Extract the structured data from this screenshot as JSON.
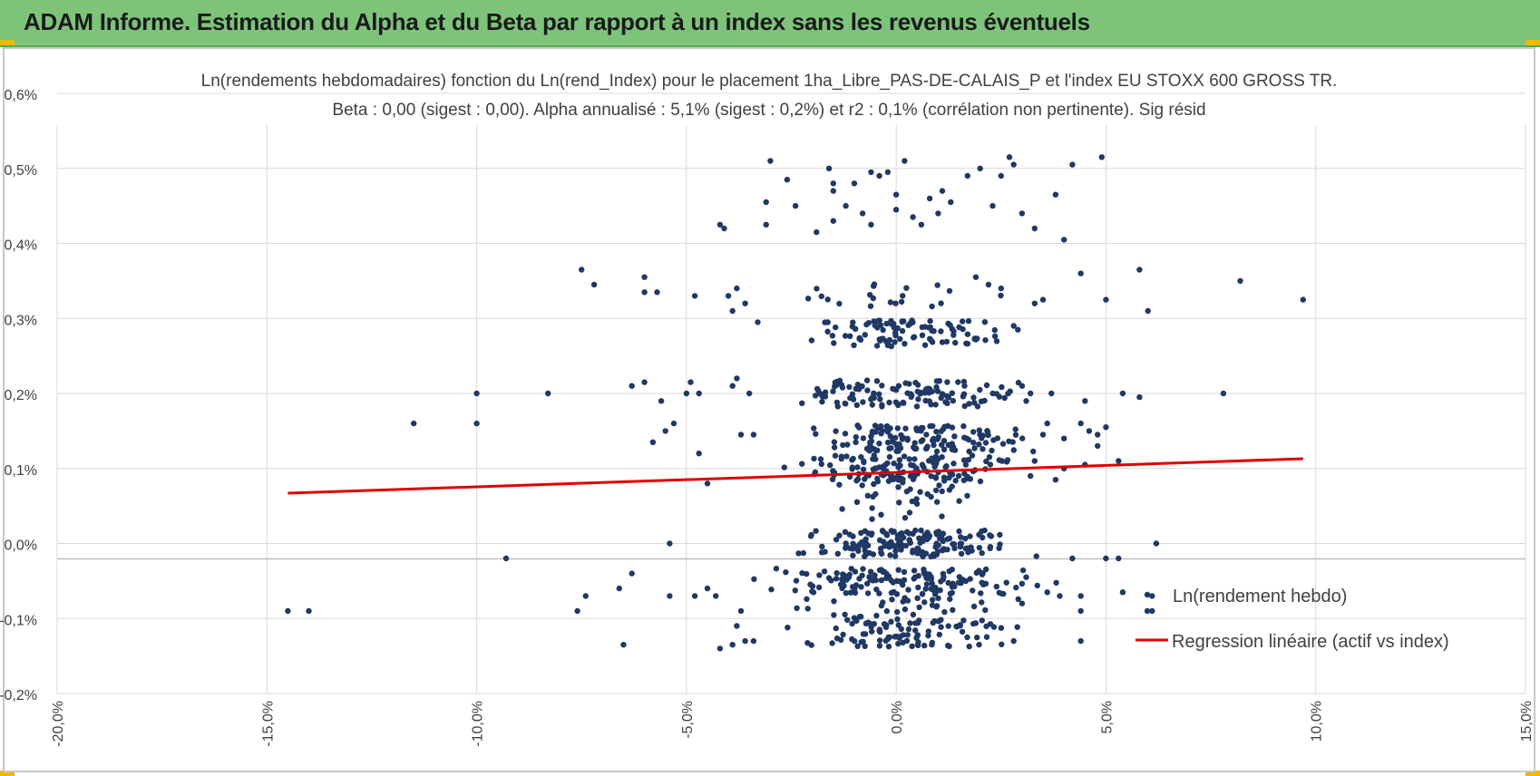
{
  "header": {
    "title": "ADAM Informe. Estimation du Alpha et du Beta par rapport à un index sans les revenus éventuels"
  },
  "colors": {
    "banner": "#7dc47a",
    "points": "#203864",
    "regression": "#e00000",
    "grid": "#d9d9d9"
  },
  "chart_data": {
    "type": "scatter",
    "title": "Ln(rendements hebdomadaires) fonction du Ln(rend_Index) pour le placement 1ha_Libre_PAS-DE-CALAIS_P et l'index EU STOXX 600 GROSS TR.",
    "subtitle": "Beta : 0,00 (sigest : 0,00). Alpha annualisé : 5,1% (sigest : 0,2%) et r2 : 0,1% (corrélation non pertinente). Sig résid",
    "xlabel": "",
    "ylabel": "",
    "xlim": [
      -20,
      15
    ],
    "ylim": [
      -0.2,
      0.6
    ],
    "x_ticks": [
      -20,
      -15,
      -10,
      -5,
      0,
      5,
      10,
      15
    ],
    "x_tick_labels": [
      "-20,0%",
      "-15,0%",
      "-10,0%",
      "-5,0%",
      "0,0%",
      "5,0%",
      "10,0%",
      "15,0%"
    ],
    "y_ticks": [
      -0.2,
      -0.1,
      0,
      0.1,
      0.2,
      0.3,
      0.4,
      0.5,
      0.6
    ],
    "y_tick_labels": [
      "-0,2%",
      "-0,1%",
      "0,0%",
      "0,1%",
      "0,2%",
      "0,3%",
      "0,4%",
      "0,5%",
      "0,6%"
    ],
    "grid": true,
    "legend": {
      "position": "bottom-right",
      "entries": [
        "Ln(rendement hebdo)",
        "Regression linéaire (actif vs index)"
      ]
    },
    "series": [
      {
        "name": "Ln(rendement hebdo)",
        "kind": "points",
        "points": [
          [
            -14.5,
            -0.09
          ],
          [
            -14.0,
            -0.09
          ],
          [
            -11.5,
            0.16
          ],
          [
            -10.0,
            0.2
          ],
          [
            -10.0,
            0.16
          ],
          [
            -9.3,
            -0.02
          ],
          [
            -8.3,
            0.2
          ],
          [
            -7.5,
            0.365
          ],
          [
            -7.2,
            0.345
          ],
          [
            -7.6,
            -0.09
          ],
          [
            -7.4,
            -0.07
          ],
          [
            -6.5,
            -0.135
          ],
          [
            -6.6,
            -0.06
          ],
          [
            -6.3,
            -0.04
          ],
          [
            -6.0,
            0.355
          ],
          [
            -6.0,
            0.335
          ],
          [
            -5.7,
            0.335
          ],
          [
            -6.3,
            0.21
          ],
          [
            -6.0,
            0.215
          ],
          [
            -5.6,
            0.19
          ],
          [
            -5.5,
            0.15
          ],
          [
            -5.8,
            0.135
          ],
          [
            -5.3,
            0.16
          ],
          [
            -5.4,
            0.0
          ],
          [
            -5.4,
            -0.07
          ],
          [
            -5.0,
            0.2
          ],
          [
            -4.9,
            0.215
          ],
          [
            -4.7,
            0.2
          ],
          [
            -4.7,
            0.12
          ],
          [
            -4.5,
            0.08
          ],
          [
            -4.8,
            0.33
          ],
          [
            -4.2,
            0.425
          ],
          [
            -4.1,
            0.42
          ],
          [
            -4.0,
            0.33
          ],
          [
            -3.8,
            0.34
          ],
          [
            -3.6,
            0.32
          ],
          [
            -3.9,
            0.31
          ],
          [
            -3.3,
            0.295
          ],
          [
            -3.9,
            0.21
          ],
          [
            -3.8,
            0.22
          ],
          [
            -3.5,
            0.2
          ],
          [
            -3.7,
            0.145
          ],
          [
            -3.4,
            0.145
          ],
          [
            -4.2,
            -0.14
          ],
          [
            -3.9,
            -0.135
          ],
          [
            -3.6,
            -0.13
          ],
          [
            -3.4,
            -0.13
          ],
          [
            -3.8,
            -0.11
          ],
          [
            -3.7,
            -0.09
          ],
          [
            -4.8,
            -0.07
          ],
          [
            -4.5,
            -0.06
          ],
          [
            -4.3,
            -0.07
          ],
          [
            -3.1,
            0.455
          ],
          [
            -3.1,
            0.425
          ],
          [
            -3.0,
            0.51
          ],
          [
            -2.6,
            0.485
          ],
          [
            -2.4,
            0.45
          ],
          [
            -1.9,
            0.415
          ],
          [
            -1.6,
            0.5
          ],
          [
            -1.5,
            0.48
          ],
          [
            -1.5,
            0.47
          ],
          [
            -1.5,
            0.43
          ],
          [
            -1.2,
            0.45
          ],
          [
            -1.0,
            0.48
          ],
          [
            -0.8,
            0.44
          ],
          [
            -0.6,
            0.425
          ],
          [
            -0.6,
            0.495
          ],
          [
            -0.4,
            0.49
          ],
          [
            -0.2,
            0.495
          ],
          [
            0.0,
            0.465
          ],
          [
            0.0,
            0.445
          ],
          [
            0.2,
            0.51
          ],
          [
            0.4,
            0.435
          ],
          [
            0.6,
            0.425
          ],
          [
            0.8,
            0.46
          ],
          [
            1.0,
            0.44
          ],
          [
            1.1,
            0.47
          ],
          [
            1.3,
            0.455
          ],
          [
            1.7,
            0.49
          ],
          [
            2.0,
            0.5
          ],
          [
            2.3,
            0.45
          ],
          [
            2.5,
            0.49
          ],
          [
            2.7,
            0.515
          ],
          [
            2.8,
            0.505
          ],
          [
            3.0,
            0.44
          ],
          [
            3.3,
            0.42
          ],
          [
            3.8,
            0.465
          ],
          [
            4.0,
            0.405
          ],
          [
            4.2,
            0.505
          ],
          [
            4.4,
            0.36
          ],
          [
            4.9,
            0.515
          ],
          [
            5.0,
            0.325
          ],
          [
            5.8,
            0.365
          ],
          [
            6.0,
            0.31
          ],
          [
            8.2,
            0.35
          ],
          [
            9.7,
            0.325
          ],
          [
            7.8,
            0.2
          ],
          [
            5.4,
            0.2
          ],
          [
            5.8,
            0.195
          ],
          [
            5.0,
            0.155
          ],
          [
            4.8,
            0.145
          ],
          [
            4.6,
            0.15
          ],
          [
            4.5,
            0.105
          ],
          [
            4.8,
            0.13
          ],
          [
            4.4,
            0.16
          ],
          [
            4.5,
            0.19
          ],
          [
            5.3,
            0.11
          ],
          [
            5.0,
            -0.02
          ],
          [
            5.3,
            -0.02
          ],
          [
            6.2,
            0.0
          ],
          [
            5.4,
            -0.065
          ],
          [
            6.1,
            -0.07
          ],
          [
            6.1,
            -0.09
          ],
          [
            4.4,
            -0.13
          ],
          [
            4.4,
            -0.07
          ],
          [
            4.4,
            -0.09
          ],
          [
            4.2,
            -0.02
          ],
          [
            4.0,
            0.1
          ],
          [
            4.0,
            0.14
          ],
          [
            3.8,
            0.085
          ],
          [
            3.9,
            -0.07
          ],
          [
            3.6,
            -0.065
          ],
          [
            3.7,
            0.2
          ],
          [
            3.6,
            0.16
          ],
          [
            3.5,
            0.145
          ],
          [
            3.5,
            0.325
          ],
          [
            3.3,
            0.32
          ],
          [
            3.2,
            0.2
          ],
          [
            3.1,
            0.19
          ],
          [
            3.0,
            0.21
          ],
          [
            3.2,
            0.09
          ],
          [
            3.3,
            0.11
          ],
          [
            3.1,
            -0.045
          ],
          [
            3.0,
            -0.08
          ],
          [
            2.8,
            -0.13
          ],
          [
            2.9,
            0.285
          ],
          [
            2.8,
            0.29
          ],
          [
            2.5,
            0.34
          ],
          [
            2.2,
            0.345
          ],
          [
            1.9,
            0.355
          ]
        ]
      },
      {
        "name": "Regression linéaire (actif vs index)",
        "kind": "line",
        "points": [
          [
            -14.5,
            0.067
          ],
          [
            9.7,
            0.113
          ]
        ]
      }
    ]
  }
}
